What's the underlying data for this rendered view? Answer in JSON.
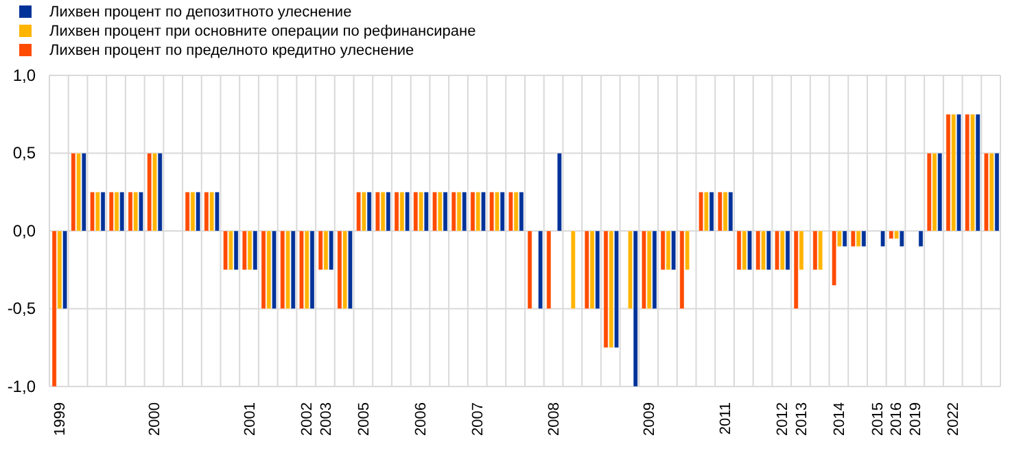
{
  "chart_data": {
    "type": "bar",
    "categories": [
      "1999",
      null,
      null,
      null,
      null,
      "2000",
      null,
      null,
      null,
      null,
      "2001",
      null,
      null,
      "2002",
      "2003",
      null,
      "2005",
      null,
      null,
      "2006",
      null,
      null,
      "2007",
      null,
      null,
      null,
      "2008",
      null,
      null,
      null,
      null,
      "2009",
      null,
      null,
      null,
      "2011",
      null,
      null,
      "2012",
      "2013",
      null,
      "2014",
      null,
      "2015",
      "2016",
      "2019",
      null,
      "2022",
      null,
      null
    ],
    "series": [
      {
        "name": "Лихвен процент по пределното кредитно улеснение",
        "color": "#ff4b00",
        "values": [
          -1.0,
          0.5,
          0.25,
          0.25,
          0.25,
          0.5,
          null,
          0.25,
          0.25,
          -0.25,
          -0.25,
          -0.5,
          -0.5,
          -0.5,
          -0.25,
          -0.5,
          0.25,
          0.25,
          0.25,
          0.25,
          0.25,
          0.25,
          0.25,
          0.25,
          0.25,
          -0.5,
          -0.5,
          null,
          -0.5,
          -0.75,
          null,
          -0.5,
          -0.25,
          -0.5,
          0.25,
          0.25,
          -0.25,
          -0.25,
          -0.25,
          -0.5,
          -0.25,
          -0.35,
          -0.1,
          null,
          -0.05,
          null,
          0.5,
          0.75,
          0.75,
          0.5
        ]
      },
      {
        "name": "Лихвен процент при основните операции по рефинансиране",
        "color": "#ffb400",
        "values": [
          -0.5,
          0.5,
          0.25,
          0.25,
          0.25,
          0.5,
          null,
          0.25,
          0.25,
          -0.25,
          -0.25,
          -0.5,
          -0.5,
          -0.5,
          -0.25,
          -0.5,
          0.25,
          0.25,
          0.25,
          0.25,
          0.25,
          0.25,
          0.25,
          0.25,
          0.25,
          null,
          null,
          -0.5,
          -0.5,
          -0.75,
          -0.5,
          -0.5,
          -0.25,
          -0.25,
          0.25,
          0.25,
          -0.25,
          -0.25,
          -0.25,
          -0.25,
          -0.25,
          -0.1,
          -0.1,
          null,
          -0.05,
          null,
          0.5,
          0.75,
          0.75,
          0.5
        ]
      },
      {
        "name": "Лихвен процент по депозитното улеснение",
        "color": "#003299",
        "values": [
          -0.5,
          0.5,
          0.25,
          0.25,
          0.25,
          0.5,
          null,
          0.25,
          0.25,
          -0.25,
          -0.25,
          -0.5,
          -0.5,
          -0.5,
          -0.25,
          -0.5,
          0.25,
          0.25,
          0.25,
          0.25,
          0.25,
          0.25,
          0.25,
          0.25,
          0.25,
          -0.5,
          0.5,
          null,
          -0.5,
          -0.75,
          -1.0,
          -0.5,
          -0.25,
          null,
          0.25,
          0.25,
          -0.25,
          -0.25,
          -0.25,
          null,
          null,
          -0.1,
          -0.1,
          -0.1,
          -0.1,
          -0.1,
          0.5,
          0.75,
          0.75,
          0.5
        ]
      }
    ],
    "ylim": [
      -1.0,
      1.0
    ],
    "yticks": [
      {
        "value": -1.0,
        "label": "-1,0"
      },
      {
        "value": -0.5,
        "label": "-0,5"
      },
      {
        "value": 0,
        "label": "0,0"
      },
      {
        "value": 0.5,
        "label": "0,5"
      },
      {
        "value": 1.0,
        "label": "1,0"
      }
    ],
    "grid": true,
    "legend": "top left"
  }
}
